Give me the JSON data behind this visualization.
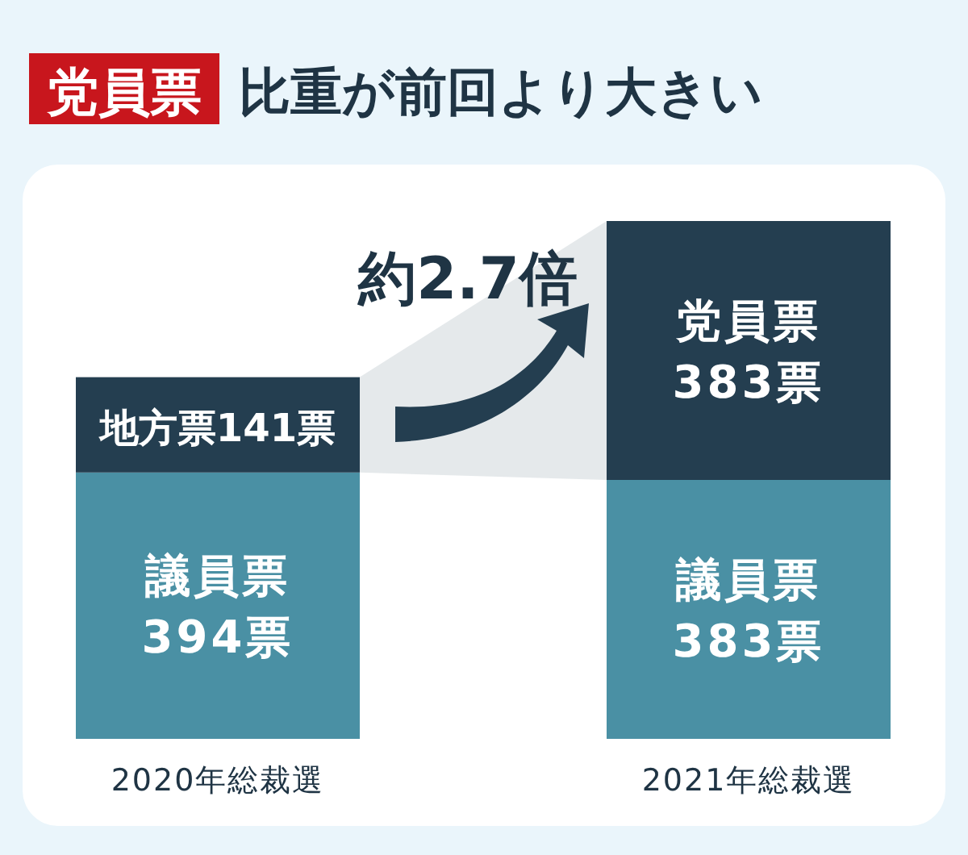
{
  "chart_data": {
    "type": "bar",
    "stacked": true,
    "title": "党員票 比重が前回より大きい",
    "categories": [
      "2020年総裁選",
      "2021年総裁選"
    ],
    "series": [
      {
        "color": "#4a90a4",
        "values": [
          394,
          383
        ],
        "value_labels": [
          "議員票\n394票",
          "議員票\n383票"
        ]
      },
      {
        "color": "#243e50",
        "values": [
          141,
          383
        ],
        "value_labels": [
          "地方票141票",
          "党員票\n383票"
        ]
      }
    ],
    "annotations": [
      "約2.7倍"
    ]
  }
}
